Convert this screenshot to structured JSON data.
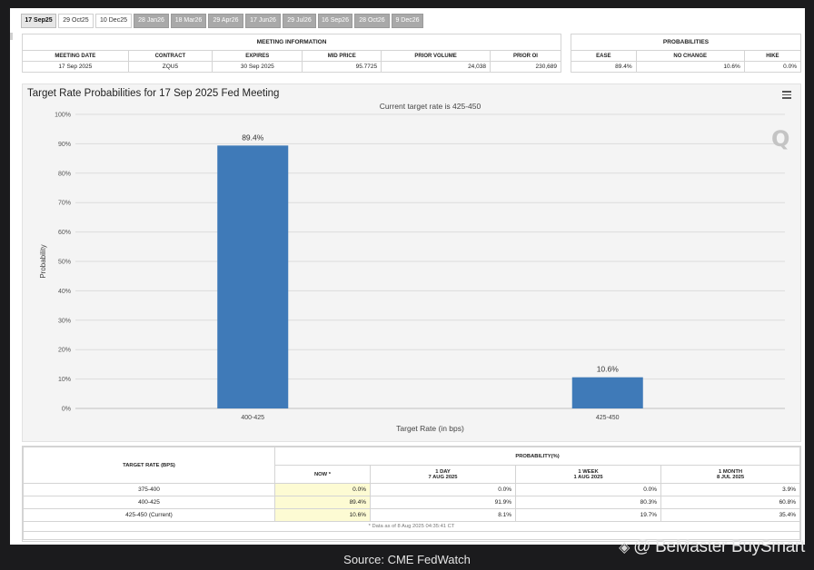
{
  "tabs": [
    {
      "label": "17 Sep25",
      "state": "active"
    },
    {
      "label": "29 Oct25",
      "state": "plain"
    },
    {
      "label": "10 Dec25",
      "state": "plain"
    },
    {
      "label": "28 Jan26",
      "state": "dim"
    },
    {
      "label": "18 Mar26",
      "state": "dim"
    },
    {
      "label": "29 Apr26",
      "state": "dim"
    },
    {
      "label": "17 Jun26",
      "state": "dim"
    },
    {
      "label": "29 Jul26",
      "state": "dim"
    },
    {
      "label": "16 Sep26",
      "state": "dim"
    },
    {
      "label": "28 Oct26",
      "state": "dim"
    },
    {
      "label": "9 Dec26",
      "state": "dim"
    }
  ],
  "meeting": {
    "caption": "MEETING INFORMATION",
    "headers": [
      "MEETING DATE",
      "CONTRACT",
      "EXPIRES",
      "MID PRICE",
      "PRIOR VOLUME",
      "PRIOR OI"
    ],
    "values": [
      "17 Sep 2025",
      "ZQU5",
      "30 Sep 2025",
      "95.7725",
      "24,038",
      "230,689"
    ]
  },
  "probabilities": {
    "caption": "PROBABILITIES",
    "headers": [
      "EASE",
      "NO CHANGE",
      "HIKE"
    ],
    "values": [
      "89.4%",
      "10.6%",
      "0.0%"
    ]
  },
  "chart_data": {
    "type": "bar",
    "title": "Target Rate Probabilities for 17 Sep 2025 Fed Meeting",
    "subtitle": "Current target rate is 425-450",
    "xlabel": "Target Rate (in bps)",
    "ylabel": "Probability",
    "categories": [
      "400-425",
      "425-450"
    ],
    "values": [
      89.4,
      10.6
    ],
    "data_labels": [
      "89.4%",
      "10.6%"
    ],
    "ylim": [
      0,
      100
    ],
    "yticks": [
      "0%",
      "10%",
      "20%",
      "30%",
      "40%",
      "50%",
      "60%",
      "70%",
      "80%",
      "90%",
      "100%"
    ],
    "grid": true,
    "bar_color": "#3f7ab8"
  },
  "prob_table": {
    "rate_header": "TARGET RATE (BPS)",
    "group_header": "PROBABILITY(%)",
    "columns": [
      {
        "line1": "NOW *",
        "line2": ""
      },
      {
        "line1": "1 DAY",
        "line2": "7 AUG 2025"
      },
      {
        "line1": "1 WEEK",
        "line2": "1 AUG 2025"
      },
      {
        "line1": "1 MONTH",
        "line2": "8 JUL 2025"
      }
    ],
    "rows": [
      {
        "rate": "375-400",
        "values": [
          "0.0%",
          "0.0%",
          "0.0%",
          "3.9%"
        ]
      },
      {
        "rate": "400-425",
        "values": [
          "89.4%",
          "91.9%",
          "80.3%",
          "60.8%"
        ]
      },
      {
        "rate": "425-450 (Current)",
        "values": [
          "10.6%",
          "8.1%",
          "19.7%",
          "35.4%"
        ]
      }
    ],
    "note": "* Data as of 8 Aug 2025 04:35:41 CT"
  },
  "source": "Source: CME FedWatch",
  "watermark": "@ BeMaster BuySmart"
}
